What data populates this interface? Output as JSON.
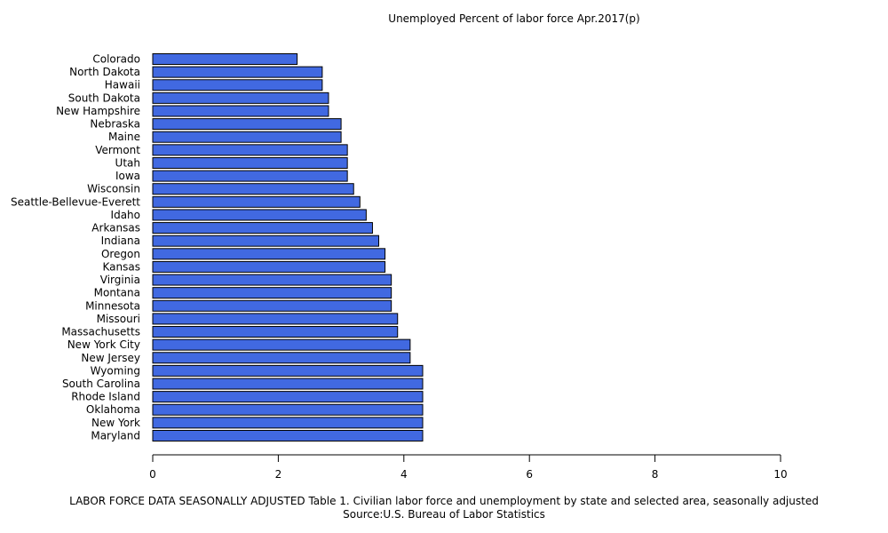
{
  "chart_data": {
    "type": "bar",
    "orientation": "horizontal",
    "title": "Unemployed Percent of labor force Apr.2017(p)",
    "categories": [
      "Colorado",
      "North Dakota",
      "Hawaii",
      "South Dakota",
      "New Hampshire",
      "Nebraska",
      "Maine",
      "Vermont",
      "Utah",
      "Iowa",
      "Wisconsin",
      "Seattle-Bellevue-Everett",
      "Idaho",
      "Arkansas",
      "Indiana",
      "Oregon",
      "Kansas",
      "Virginia",
      "Montana",
      "Minnesota",
      "Missouri",
      "Massachusetts",
      "New York City",
      "New Jersey",
      "Wyoming",
      "South Carolina",
      "Rhode Island",
      "Oklahoma",
      "New York",
      "Maryland"
    ],
    "values": [
      2.3,
      2.7,
      2.7,
      2.8,
      2.8,
      3.0,
      3.0,
      3.1,
      3.1,
      3.1,
      3.2,
      3.3,
      3.4,
      3.5,
      3.6,
      3.7,
      3.7,
      3.8,
      3.8,
      3.8,
      3.9,
      3.9,
      4.1,
      4.1,
      4.3,
      4.3,
      4.3,
      4.3,
      4.3,
      4.3
    ],
    "xlim": [
      0,
      10
    ],
    "xticks": [
      0,
      2,
      4,
      6,
      8,
      10
    ],
    "grid": false,
    "bar_color": "#4169e1",
    "bar_edge_color": "#000000"
  },
  "footer": {
    "line1": "LABOR FORCE DATA SEASONALLY ADJUSTED Table 1. Civilian labor force and unemployment by state and selected area, seasonally adjusted",
    "line2": "Source:U.S. Bureau of Labor Statistics"
  }
}
